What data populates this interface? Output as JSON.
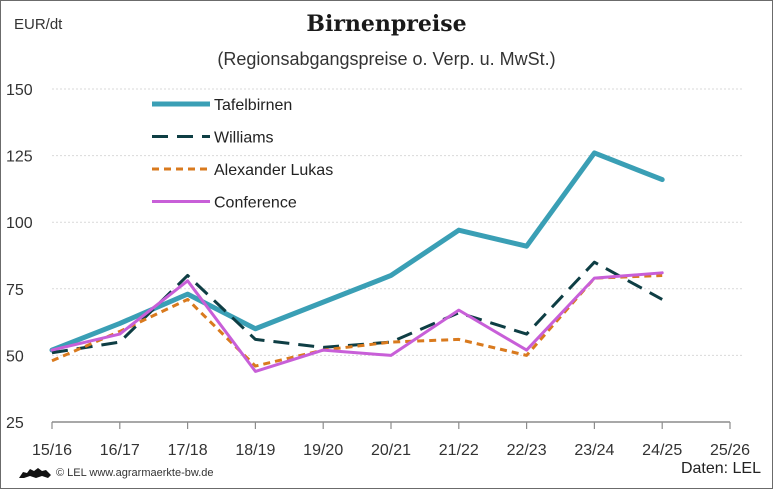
{
  "chart_data": {
    "type": "line",
    "title": "Birnenpreise",
    "subtitle": "(Regionsabgangspreise o. Verp. u. MwSt.)",
    "ylabel": "EUR/dt",
    "xlabel": "",
    "categories": [
      "15/16",
      "16/17",
      "17/18",
      "18/19",
      "19/20",
      "20/21",
      "21/22",
      "22/23",
      "23/24",
      "24/25",
      "25/26"
    ],
    "ylim": [
      25,
      150
    ],
    "yticks": [
      25,
      50,
      75,
      100,
      125,
      150
    ],
    "grid": true,
    "legend_position": "top-left",
    "series": [
      {
        "name": "Tafelbirnen",
        "color": "#3a9fb5",
        "style": "solid",
        "values": [
          52,
          62,
          73,
          60,
          70,
          80,
          97,
          91,
          126,
          116,
          null
        ]
      },
      {
        "name": "Williams",
        "color": "#0e3e44",
        "style": "dashed",
        "values": [
          51,
          55,
          80,
          56,
          53,
          55,
          66,
          58,
          85,
          71,
          null
        ]
      },
      {
        "name": "Alexander Lukas",
        "color": "#d97a1e",
        "style": "dotted",
        "values": [
          48,
          59,
          71,
          46,
          52,
          55,
          56,
          50,
          79,
          80,
          null
        ]
      },
      {
        "name": "Conference",
        "color": "#c85fd8",
        "style": "solid",
        "values": [
          52,
          58,
          78,
          44,
          52,
          50,
          67,
          52,
          79,
          81,
          null
        ]
      }
    ]
  },
  "footer": {
    "source": "© LEL www.agrarmaerkte-bw.de",
    "credit": "Daten: LEL",
    "logo_icon": "lion-icon"
  }
}
